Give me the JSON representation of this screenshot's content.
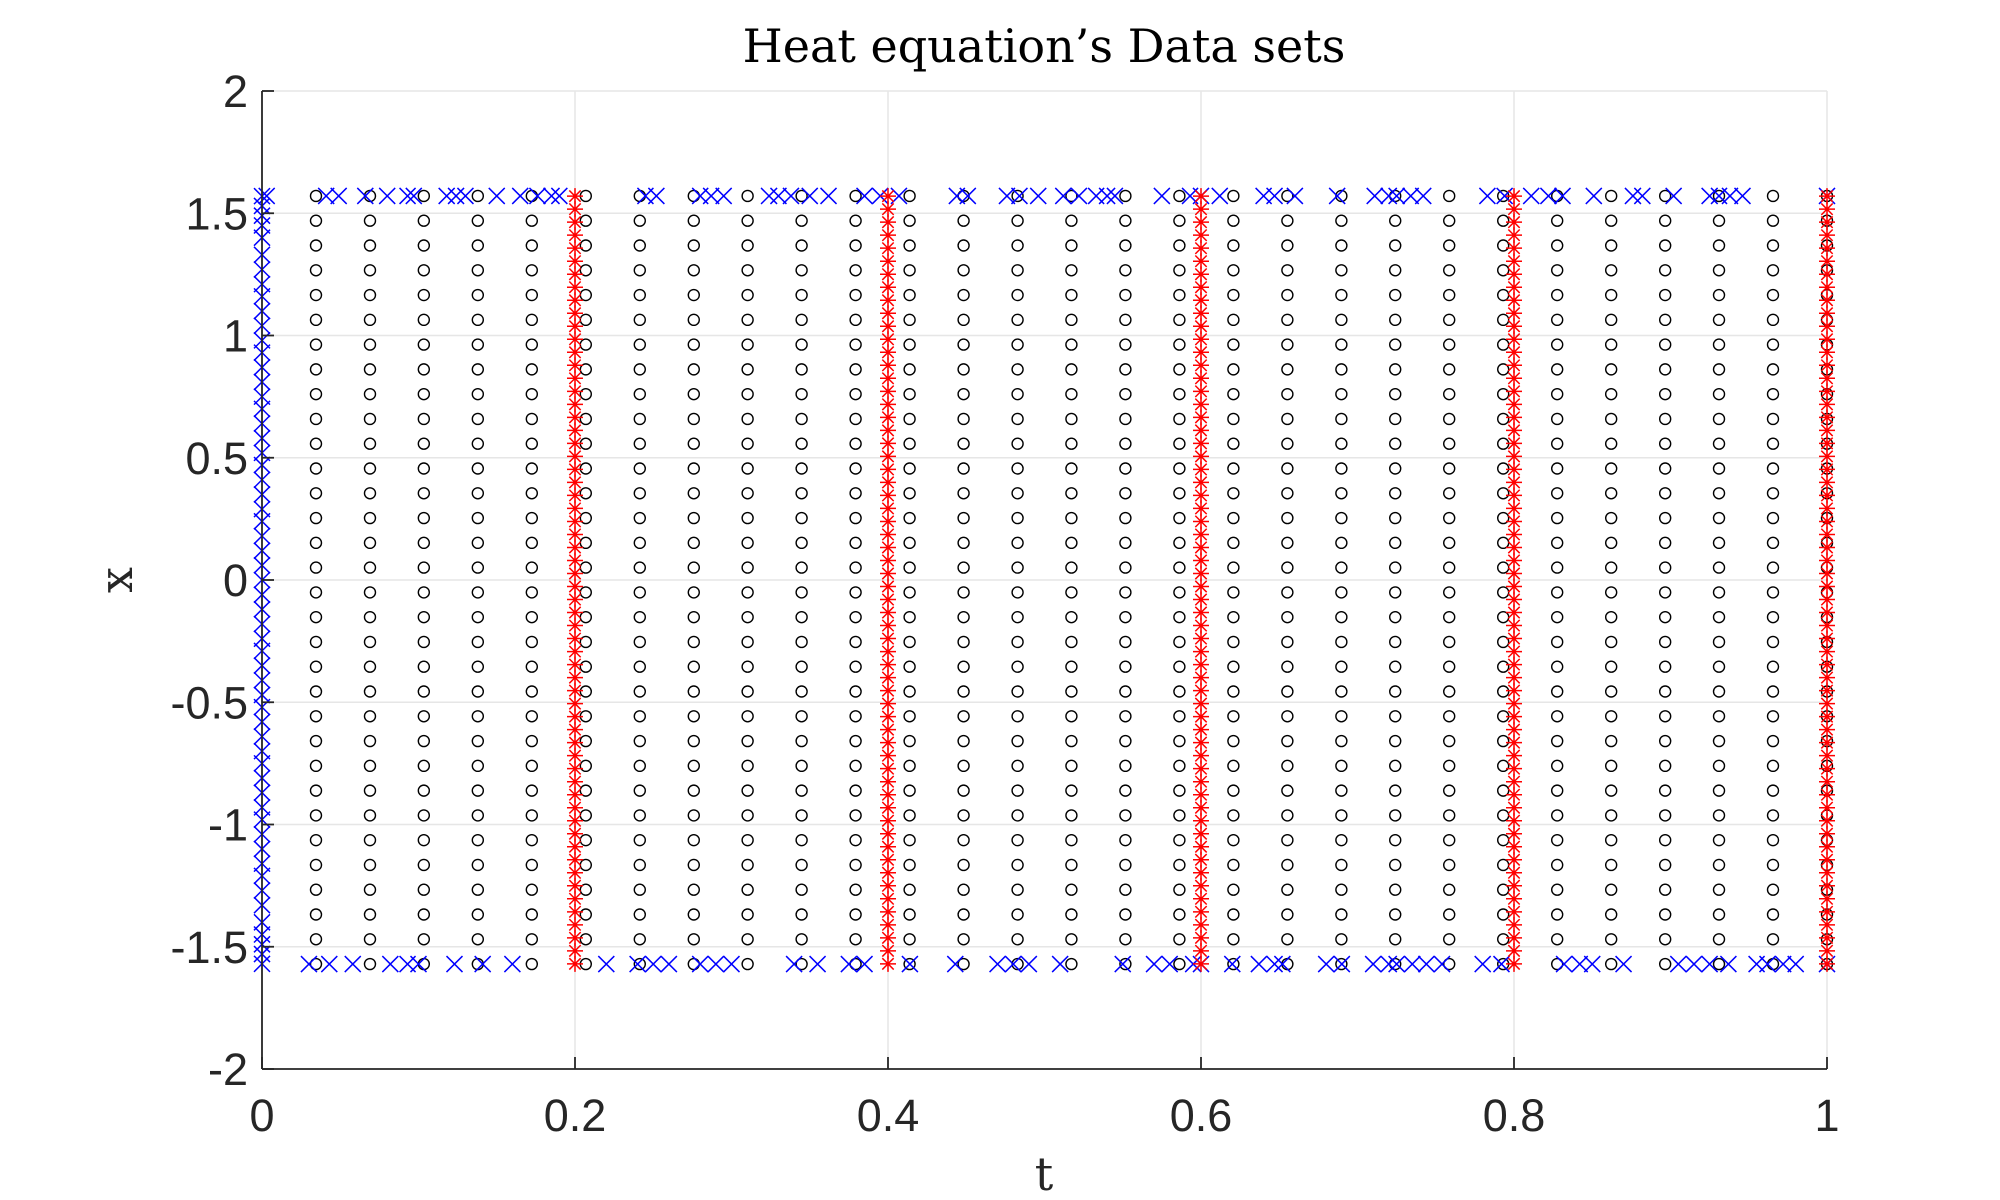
{
  "chart_data": {
    "type": "scatter",
    "title": "Heat equation’s Data sets",
    "xlabel": "t",
    "ylabel": "x",
    "xlim": [
      0,
      1
    ],
    "ylim": [
      -2,
      2
    ],
    "xticks": [
      "0",
      "0.2",
      "0.4",
      "0.6",
      "0.8",
      "1"
    ],
    "yticks": [
      "2",
      "1.5",
      "1",
      "0.5",
      "0",
      "-0.5",
      "-1",
      "-1.5",
      "-2"
    ],
    "grid": true,
    "colors": {
      "interior": "#000000",
      "boundary": "#0000ff",
      "observation": "#ff0000",
      "axis": "#262626",
      "grid": "#e6e6e6"
    },
    "series": [
      {
        "marker": "circle",
        "color": "#000000",
        "t_values": [
          0.0345,
          0.069,
          0.1034,
          0.1379,
          0.1724,
          0.2069,
          0.2414,
          0.2759,
          0.3103,
          0.3448,
          0.3793,
          0.4138,
          0.4483,
          0.4828,
          0.5172,
          0.5517,
          0.5862,
          0.6207,
          0.6552,
          0.6897,
          0.7241,
          0.7586,
          0.7931,
          0.8276,
          0.8621,
          0.8966,
          0.931,
          0.9655,
          1.0
        ],
        "x_range": [
          -1.5708,
          1.5708
        ],
        "x_count": 32
      },
      {
        "marker": "x",
        "color": "#0000ff",
        "t_at_x0": 0.0,
        "x_at_t0": [
          -1.57,
          -1.53,
          -1.49,
          -1.45,
          -1.4,
          -1.33,
          -1.27,
          -1.21,
          -1.16,
          -1.1,
          -1.04,
          -0.98,
          -0.93,
          -0.87,
          -0.81,
          -0.75,
          -0.7,
          -0.64,
          -0.58,
          -0.52,
          -0.47,
          -0.41,
          -0.35,
          -0.29,
          -0.24,
          -0.18,
          -0.12,
          -0.06,
          0.0,
          0.06,
          0.12,
          0.18,
          0.24,
          0.29,
          0.35,
          0.41,
          0.47,
          0.52,
          0.58,
          0.64,
          0.7,
          0.75,
          0.81,
          0.87,
          0.93,
          0.98,
          1.04,
          1.1,
          1.16,
          1.21,
          1.27,
          1.33,
          1.4,
          1.45,
          1.49,
          1.53,
          1.57
        ],
        "x_top": 1.5708,
        "t_top": [
          0.003,
          0.041,
          0.049,
          0.066,
          0.08,
          0.093,
          0.097,
          0.118,
          0.124,
          0.13,
          0.15,
          0.165,
          0.176,
          0.185,
          0.19,
          0.245,
          0.252,
          0.28,
          0.287,
          0.295,
          0.324,
          0.33,
          0.338,
          0.35,
          0.362,
          0.385,
          0.395,
          0.407,
          0.444,
          0.451,
          0.476,
          0.484,
          0.496,
          0.512,
          0.522,
          0.533,
          0.54,
          0.545,
          0.575,
          0.593,
          0.6,
          0.612,
          0.64,
          0.647,
          0.66,
          0.687,
          0.711,
          0.72,
          0.725,
          0.734,
          0.742,
          0.783,
          0.794,
          0.811,
          0.822,
          0.831,
          0.851,
          0.876,
          0.882,
          0.902,
          0.925,
          0.931,
          0.938,
          0.946,
          1.0
        ],
        "x_bottom": -1.5708,
        "t_bottom": [
          0.03,
          0.043,
          0.058,
          0.082,
          0.093,
          0.1,
          0.123,
          0.141,
          0.16,
          0.22,
          0.24,
          0.25,
          0.26,
          0.28,
          0.29,
          0.3,
          0.34,
          0.355,
          0.375,
          0.385,
          0.414,
          0.443,
          0.47,
          0.48,
          0.49,
          0.51,
          0.55,
          0.57,
          0.58,
          0.595,
          0.6,
          0.62,
          0.637,
          0.647,
          0.652,
          0.68,
          0.69,
          0.71,
          0.72,
          0.725,
          0.735,
          0.744,
          0.754,
          0.78,
          0.792,
          0.832,
          0.842,
          0.85,
          0.87,
          0.905,
          0.915,
          0.925,
          0.937,
          0.955,
          0.962,
          0.972,
          0.98,
          1.0
        ]
      },
      {
        "marker": "asterisk",
        "color": "#ff0000",
        "t_values": [
          0.2,
          0.4,
          0.6,
          0.8,
          1.0
        ],
        "x_range": [
          -1.57,
          1.57
        ],
        "x_count": 60
      }
    ]
  }
}
